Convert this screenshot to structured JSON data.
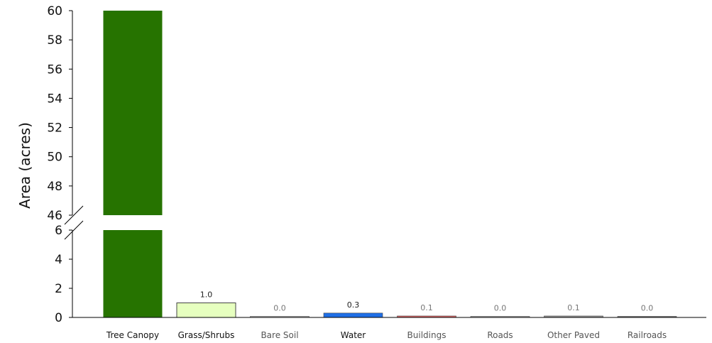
{
  "chart_data": {
    "type": "bar",
    "ylabel": "Area (acres)",
    "axis_break": {
      "lower_range": [
        0,
        6
      ],
      "upper_range": [
        46,
        60
      ]
    },
    "ylim": [
      0,
      60
    ],
    "yticks": [
      "0",
      "2",
      "4",
      "6",
      "46",
      "48",
      "50",
      "52",
      "54",
      "56",
      "58",
      "60"
    ],
    "categories": [
      "Tree Canopy",
      "Grass/Shrubs",
      "Bare Soil",
      "Water",
      "Buildings",
      "Roads",
      "Other Paved",
      "Railroads"
    ],
    "values": [
      60,
      1.0,
      0.0,
      0.3,
      0.1,
      0.0,
      0.1,
      0.0
    ],
    "data_labels": [
      "",
      "1.0",
      "0.0",
      "0.3",
      "0.1",
      "0.0",
      "0.1",
      "0.0"
    ],
    "colors": [
      "#267300",
      "#e6ffbf",
      "#bfbfbf",
      "#1f6fe6",
      "#e06666",
      "#b3b3b3",
      "#999999",
      "#808080"
    ],
    "label_colors": [
      "#111111",
      "#111111",
      "#555555",
      "#111111",
      "#555555",
      "#555555",
      "#555555",
      "#555555"
    ],
    "grid": false,
    "legend": "none"
  }
}
